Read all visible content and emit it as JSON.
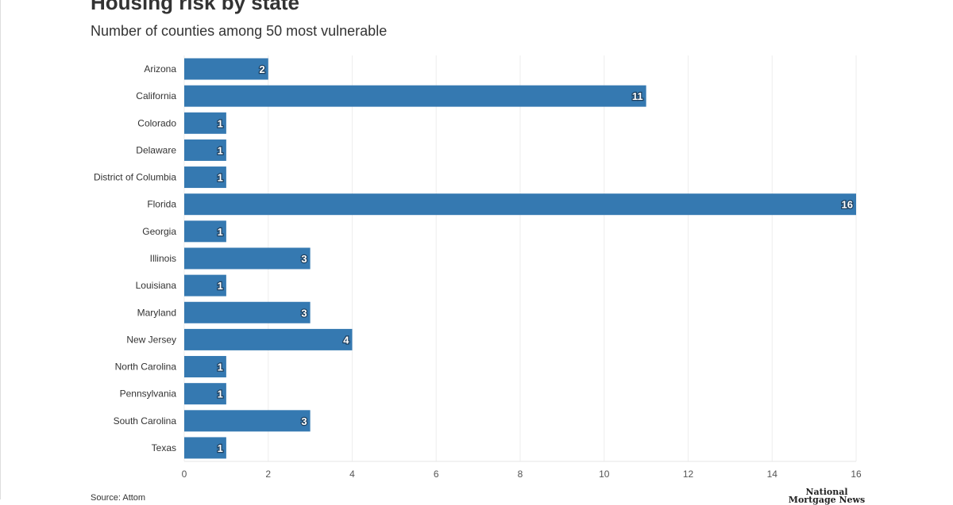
{
  "title": "Housing risk by state",
  "subtitle": "Number of counties among 50 most vulnerable",
  "source": "Source: Attom",
  "logo_text": "National Mortgage News",
  "colors": {
    "bar": "#3579b1",
    "grid": "#eeeeee",
    "text": "#333333"
  },
  "chart_data": {
    "type": "bar",
    "orientation": "horizontal",
    "categories": [
      "Arizona",
      "California",
      "Colorado",
      "Delaware",
      "District of Columbia",
      "Florida",
      "Georgia",
      "Illinois",
      "Louisiana",
      "Maryland",
      "New Jersey",
      "North Carolina",
      "Pennsylvania",
      "South Carolina",
      "Texas"
    ],
    "values": [
      2,
      11,
      1,
      1,
      1,
      16,
      1,
      3,
      1,
      3,
      4,
      1,
      1,
      3,
      1
    ],
    "xlim": [
      0,
      16
    ],
    "xticks": [
      0,
      2,
      4,
      6,
      8,
      10,
      12,
      14,
      16
    ],
    "grid": true,
    "data_labels": true
  }
}
